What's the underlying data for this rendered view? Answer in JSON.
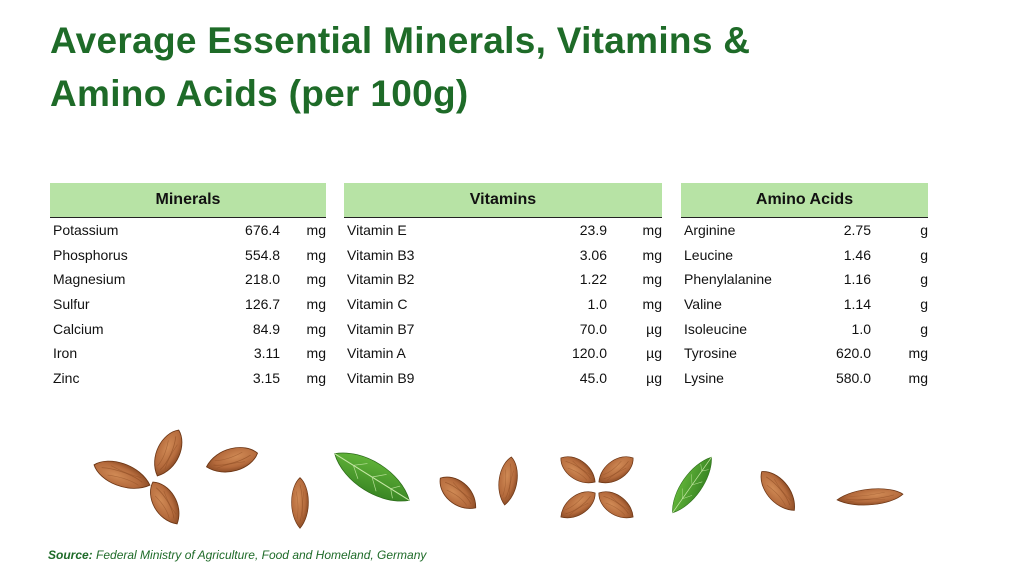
{
  "title": {
    "line1": "Average Essential Minerals, Vitamins &",
    "line2": "Amino Acids (per 100g)"
  },
  "tables": {
    "minerals": {
      "header": "Minerals",
      "rows": [
        {
          "name": "Potassium",
          "value": "676.4",
          "unit": "mg"
        },
        {
          "name": "Phosphorus",
          "value": "554.8",
          "unit": "mg"
        },
        {
          "name": "Magnesium",
          "value": "218.0",
          "unit": "mg"
        },
        {
          "name": "Sulfur",
          "value": "126.7",
          "unit": "mg"
        },
        {
          "name": "Calcium",
          "value": "84.9",
          "unit": "mg"
        },
        {
          "name": "Iron",
          "value": "3.11",
          "unit": "mg"
        },
        {
          "name": "Zinc",
          "value": "3.15",
          "unit": "mg"
        }
      ]
    },
    "vitamins": {
      "header": "Vitamins",
      "rows": [
        {
          "name": "Vitamin E",
          "value": "23.9",
          "unit": "mg"
        },
        {
          "name": "Vitamin B3",
          "value": "3.06",
          "unit": "mg"
        },
        {
          "name": "Vitamin B2",
          "value": "1.22",
          "unit": "mg"
        },
        {
          "name": "Vitamin C",
          "value": "1.0",
          "unit": "mg"
        },
        {
          "name": "Vitamin B7",
          "value": "70.0",
          "unit": "µg"
        },
        {
          "name": "Vitamin A",
          "value": "120.0",
          "unit": "µg"
        },
        {
          "name": "Vitamin B9",
          "value": "45.0",
          "unit": "µg"
        }
      ]
    },
    "amino": {
      "header": "Amino Acids",
      "rows": [
        {
          "name": "Arginine",
          "value": "2.75",
          "unit": "g"
        },
        {
          "name": "Leucine",
          "value": "1.46",
          "unit": "g"
        },
        {
          "name": "Phenylalanine",
          "value": "1.16",
          "unit": "g"
        },
        {
          "name": "Valine",
          "value": "1.14",
          "unit": "g"
        },
        {
          "name": "Isoleucine",
          "value": "1.0",
          "unit": "g"
        },
        {
          "name": "Tyrosine",
          "value": "620.0",
          "unit": "mg"
        },
        {
          "name": "Lysine",
          "value": "580.0",
          "unit": "mg"
        }
      ]
    }
  },
  "source": {
    "label": "Source:",
    "text": " Federal Ministry of Agriculture, Food and Homeland, Germany"
  },
  "colors": {
    "title_green": "#1e6b28",
    "header_green": "#b7e3a5",
    "almond": "#b46a3c",
    "leaf": "#3f8f2a"
  },
  "icons": [
    "almond-icon",
    "leaf-icon"
  ]
}
